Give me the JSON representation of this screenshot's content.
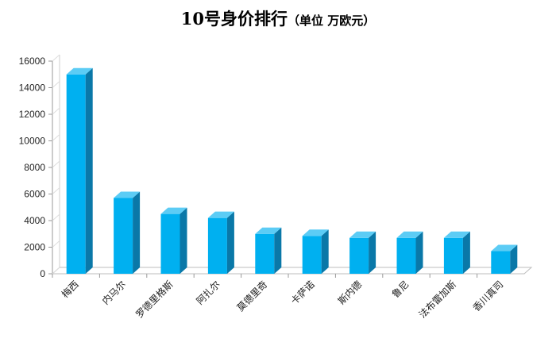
{
  "chart_data": {
    "type": "bar",
    "title": "10号身价排行",
    "subtitle": "（单位 万欧元）",
    "xlabel": "",
    "ylabel": "",
    "categories": [
      "梅西",
      "内马尔",
      "罗德里格斯",
      "阿扎尔",
      "莫德里奇",
      "卡萨诺",
      "斯内德",
      "鲁尼",
      "法布雷加斯",
      "香川真司"
    ],
    "values": [
      15000,
      5700,
      4500,
      4200,
      3000,
      2850,
      2700,
      2700,
      2700,
      1700
    ],
    "ylim": [
      0,
      16000
    ],
    "yticks": [
      0,
      2000,
      4000,
      6000,
      8000,
      10000,
      12000,
      14000,
      16000
    ],
    "grid": false,
    "legend": "none",
    "colors": {
      "bar_front": "#00B0F0",
      "bar_side": "#0A78A8",
      "bar_top": "#5CCCF5",
      "axis": "#999999"
    }
  }
}
